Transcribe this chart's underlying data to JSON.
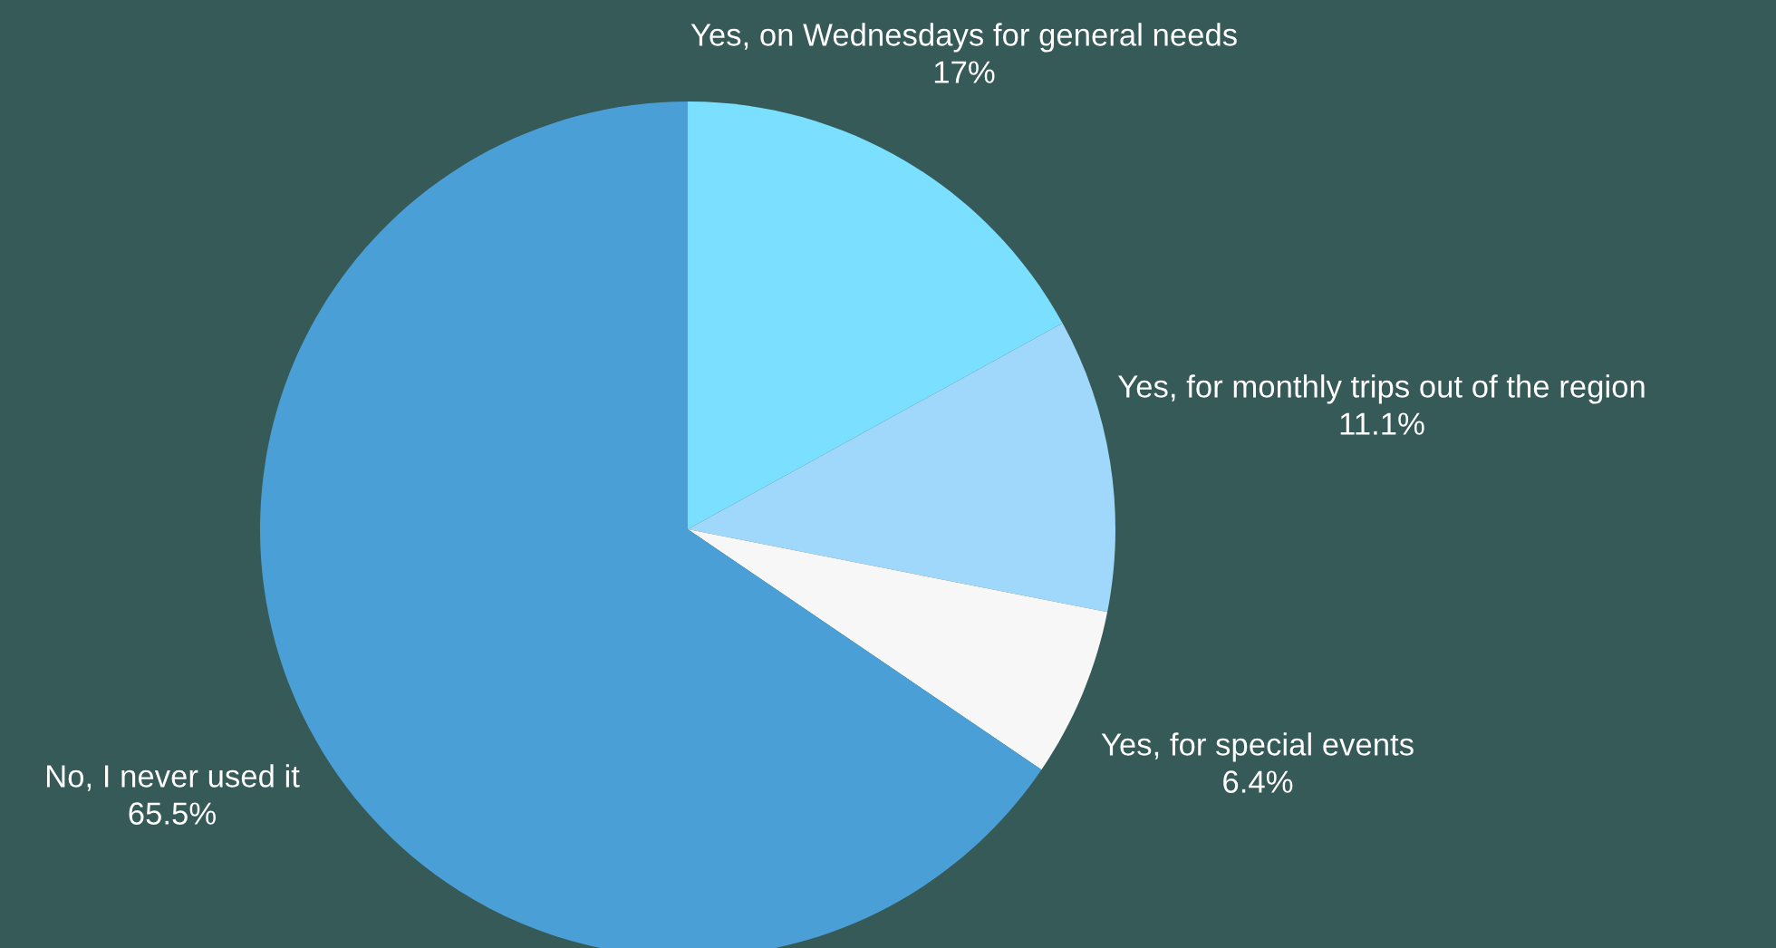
{
  "chart_data": {
    "type": "pie",
    "categories": [
      "Yes, on Wednesdays for general needs",
      "Yes, for monthly trips out of the region",
      "Yes, for special events",
      "No, I never used it"
    ],
    "values": [
      17,
      11.1,
      6.4,
      65.5
    ],
    "value_labels": [
      "17%",
      "11.1%",
      "6.4%",
      "65.5%"
    ],
    "colors": [
      "#7be0ff",
      "#a0d8fb",
      "#f7f7f7",
      "#4aa0d6"
    ]
  }
}
